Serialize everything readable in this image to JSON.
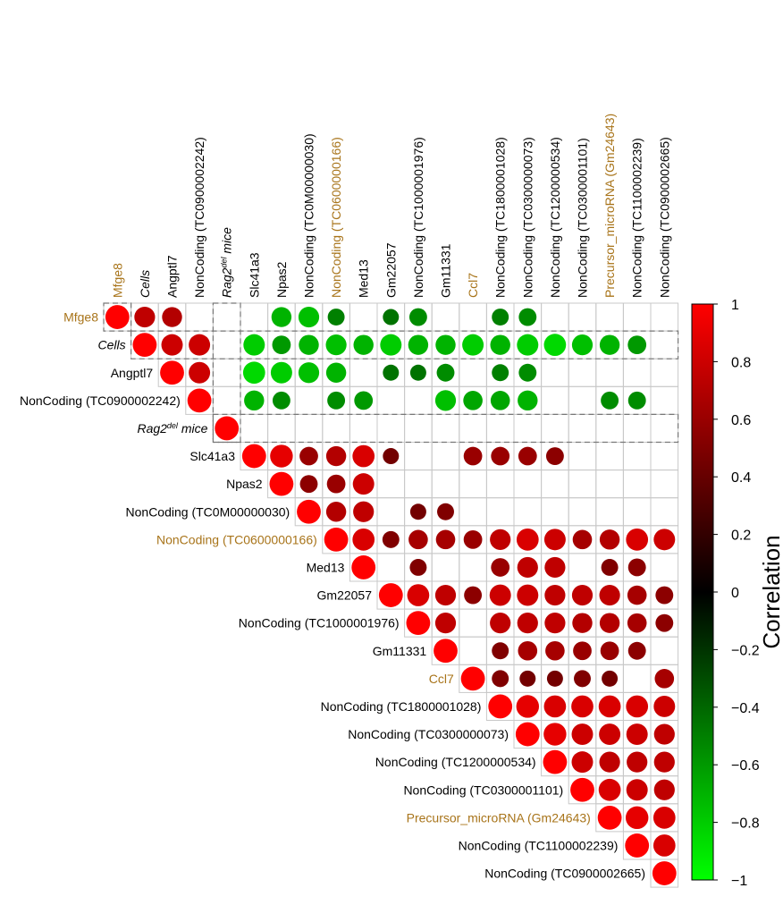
{
  "chart_data": {
    "type": "heatmap",
    "style": "upper-triangle correlation plot with circle markers",
    "labels": [
      "Mfge8",
      "Cells",
      "Angptl7",
      "NonCoding (TC0900002242)",
      "Rag2del mice",
      "Slc41a3",
      "Npas2",
      "NonCoding (TC0M00000030)",
      "NonCoding (TC0600000166)",
      "Med13",
      "Gm22057",
      "NonCoding (TC1000001976)",
      "Gm11331",
      "Ccl7",
      "NonCoding (TC1800001028)",
      "NonCoding (TC0300000073)",
      "NonCoding (TC1200000534)",
      "NonCoding (TC0300001101)",
      "Precursor_microRNA (Gm24643)",
      "NonCoding (TC1100002239)",
      "NonCoding (TC0900002665)"
    ],
    "label_parts": {
      "Rag2del mice": {
        "base": "Rag2",
        "superscript": "del",
        "suffix": " mice",
        "italic": true
      },
      "Cells": {
        "italic": true
      }
    },
    "highlighted_labels": [
      "Mfge8",
      "NonCoding (TC0600000166)",
      "Ccl7",
      "Precursor_microRNA (Gm24643)"
    ],
    "highlight_color": "#a8741a",
    "dashed_box_rows": [
      1,
      4
    ],
    "dashed_box_cols": [
      0,
      4
    ],
    "cells": [
      [
        0,
        0,
        1.0
      ],
      [
        0,
        1,
        0.75
      ],
      [
        0,
        2,
        0.7
      ],
      [
        0,
        6,
        -0.7
      ],
      [
        0,
        7,
        -0.75
      ],
      [
        0,
        8,
        -0.5
      ],
      [
        0,
        10,
        -0.45
      ],
      [
        0,
        11,
        -0.55
      ],
      [
        0,
        14,
        -0.5
      ],
      [
        0,
        15,
        -0.55
      ],
      [
        1,
        1,
        1.0
      ],
      [
        1,
        2,
        0.8
      ],
      [
        1,
        3,
        0.8
      ],
      [
        1,
        5,
        -0.8
      ],
      [
        1,
        6,
        -0.6
      ],
      [
        1,
        7,
        -0.7
      ],
      [
        1,
        8,
        -0.75
      ],
      [
        1,
        9,
        -0.7
      ],
      [
        1,
        10,
        -0.8
      ],
      [
        1,
        11,
        -0.7
      ],
      [
        1,
        12,
        -0.7
      ],
      [
        1,
        13,
        -0.8
      ],
      [
        1,
        14,
        -0.7
      ],
      [
        1,
        15,
        -0.8
      ],
      [
        1,
        16,
        -0.85
      ],
      [
        1,
        17,
        -0.75
      ],
      [
        1,
        18,
        -0.7
      ],
      [
        1,
        19,
        -0.6
      ],
      [
        2,
        2,
        1.0
      ],
      [
        2,
        3,
        0.8
      ],
      [
        2,
        5,
        -0.85
      ],
      [
        2,
        6,
        -0.8
      ],
      [
        2,
        7,
        -0.75
      ],
      [
        2,
        8,
        -0.7
      ],
      [
        2,
        10,
        -0.45
      ],
      [
        2,
        11,
        -0.45
      ],
      [
        2,
        12,
        -0.55
      ],
      [
        2,
        14,
        -0.5
      ],
      [
        2,
        15,
        -0.55
      ],
      [
        3,
        3,
        1.0
      ],
      [
        3,
        5,
        -0.7
      ],
      [
        3,
        6,
        -0.55
      ],
      [
        3,
        8,
        -0.55
      ],
      [
        3,
        9,
        -0.6
      ],
      [
        3,
        12,
        -0.75
      ],
      [
        3,
        13,
        -0.65
      ],
      [
        3,
        14,
        -0.65
      ],
      [
        3,
        15,
        -0.7
      ],
      [
        3,
        18,
        -0.55
      ],
      [
        3,
        19,
        -0.55
      ],
      [
        4,
        4,
        1.0
      ],
      [
        5,
        5,
        1.0
      ],
      [
        5,
        6,
        0.9
      ],
      [
        5,
        7,
        0.6
      ],
      [
        5,
        8,
        0.7
      ],
      [
        5,
        9,
        0.85
      ],
      [
        5,
        10,
        0.45
      ],
      [
        5,
        13,
        0.6
      ],
      [
        5,
        14,
        0.6
      ],
      [
        5,
        15,
        0.6
      ],
      [
        5,
        16,
        0.55
      ],
      [
        6,
        6,
        1.0
      ],
      [
        6,
        7,
        0.55
      ],
      [
        6,
        8,
        0.6
      ],
      [
        6,
        9,
        0.8
      ],
      [
        7,
        7,
        1.0
      ],
      [
        7,
        8,
        0.7
      ],
      [
        7,
        9,
        0.75
      ],
      [
        7,
        11,
        0.45
      ],
      [
        7,
        12,
        0.5
      ],
      [
        8,
        8,
        1.0
      ],
      [
        8,
        9,
        0.85
      ],
      [
        8,
        10,
        0.5
      ],
      [
        8,
        11,
        0.65
      ],
      [
        8,
        12,
        0.65
      ],
      [
        8,
        13,
        0.6
      ],
      [
        8,
        14,
        0.75
      ],
      [
        8,
        15,
        0.85
      ],
      [
        8,
        16,
        0.8
      ],
      [
        8,
        17,
        0.65
      ],
      [
        8,
        18,
        0.7
      ],
      [
        8,
        19,
        0.85
      ],
      [
        8,
        20,
        0.8
      ],
      [
        9,
        9,
        1.0
      ],
      [
        9,
        11,
        0.5
      ],
      [
        9,
        14,
        0.6
      ],
      [
        9,
        15,
        0.75
      ],
      [
        9,
        16,
        0.75
      ],
      [
        9,
        18,
        0.5
      ],
      [
        9,
        19,
        0.55
      ],
      [
        10,
        10,
        1.0
      ],
      [
        10,
        11,
        0.85
      ],
      [
        10,
        12,
        0.75
      ],
      [
        10,
        13,
        0.55
      ],
      [
        10,
        14,
        0.8
      ],
      [
        10,
        15,
        0.8
      ],
      [
        10,
        16,
        0.75
      ],
      [
        10,
        17,
        0.75
      ],
      [
        10,
        18,
        0.75
      ],
      [
        10,
        19,
        0.65
      ],
      [
        10,
        20,
        0.55
      ],
      [
        11,
        11,
        1.0
      ],
      [
        11,
        12,
        0.75
      ],
      [
        11,
        14,
        0.75
      ],
      [
        11,
        15,
        0.75
      ],
      [
        11,
        16,
        0.75
      ],
      [
        11,
        17,
        0.7
      ],
      [
        11,
        18,
        0.7
      ],
      [
        11,
        19,
        0.65
      ],
      [
        11,
        20,
        0.55
      ],
      [
        12,
        12,
        1.0
      ],
      [
        12,
        14,
        0.5
      ],
      [
        12,
        15,
        0.65
      ],
      [
        12,
        16,
        0.65
      ],
      [
        12,
        17,
        0.6
      ],
      [
        12,
        18,
        0.6
      ],
      [
        12,
        19,
        0.55
      ],
      [
        13,
        13,
        1.0
      ],
      [
        13,
        14,
        0.5
      ],
      [
        13,
        15,
        0.45
      ],
      [
        13,
        16,
        0.45
      ],
      [
        13,
        17,
        0.5
      ],
      [
        13,
        18,
        0.45
      ],
      [
        13,
        20,
        0.65
      ],
      [
        14,
        14,
        1.0
      ],
      [
        14,
        15,
        0.9
      ],
      [
        14,
        16,
        0.85
      ],
      [
        14,
        17,
        0.85
      ],
      [
        14,
        18,
        0.85
      ],
      [
        14,
        19,
        0.85
      ],
      [
        14,
        20,
        0.8
      ],
      [
        15,
        15,
        1.0
      ],
      [
        15,
        16,
        0.9
      ],
      [
        15,
        17,
        0.8
      ],
      [
        15,
        18,
        0.8
      ],
      [
        15,
        19,
        0.8
      ],
      [
        15,
        20,
        0.75
      ],
      [
        16,
        16,
        1.0
      ],
      [
        16,
        17,
        0.8
      ],
      [
        16,
        18,
        0.75
      ],
      [
        16,
        19,
        0.75
      ],
      [
        16,
        20,
        0.75
      ],
      [
        17,
        17,
        1.0
      ],
      [
        17,
        18,
        0.85
      ],
      [
        17,
        19,
        0.8
      ],
      [
        17,
        20,
        0.75
      ],
      [
        18,
        18,
        1.0
      ],
      [
        18,
        19,
        0.9
      ],
      [
        18,
        20,
        0.85
      ],
      [
        19,
        19,
        1.0
      ],
      [
        19,
        20,
        0.85
      ],
      [
        20,
        20,
        1.0
      ]
    ],
    "color_scale": {
      "min": -1,
      "mid": 0,
      "max": 1,
      "colors": [
        "#00ff00",
        "#000000",
        "#ff0000"
      ]
    },
    "colorbar": {
      "label": "Correlation",
      "ticks": [
        "1",
        "0.8",
        "0.6",
        "0.4",
        "0.2",
        "0",
        "−0.2",
        "−0.4",
        "−0.6",
        "−0.8",
        "−1"
      ],
      "tick_values": [
        1,
        0.8,
        0.6,
        0.4,
        0.2,
        0,
        -0.2,
        -0.4,
        -0.6,
        -0.8,
        -1
      ]
    },
    "grid": true
  }
}
